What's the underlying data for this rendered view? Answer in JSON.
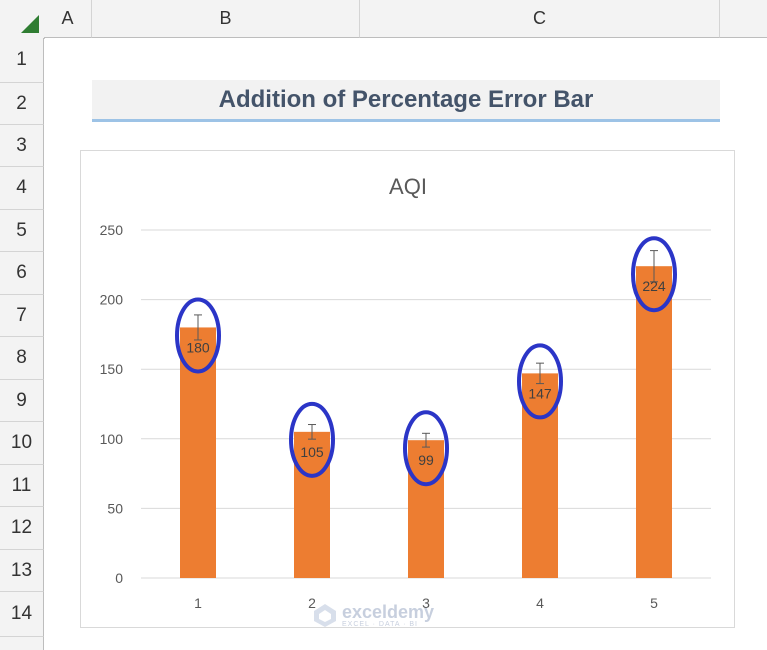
{
  "sheet": {
    "columns": [
      "A",
      "B",
      "C"
    ],
    "rows": [
      "1",
      "2",
      "3",
      "4",
      "5",
      "6",
      "7",
      "8",
      "9",
      "10",
      "11",
      "12",
      "13",
      "14"
    ]
  },
  "banner": {
    "title": "Addition of Percentage Error Bar"
  },
  "chart_data": {
    "type": "bar",
    "title": "AQI",
    "xlabel": "",
    "ylabel": "",
    "categories": [
      "1",
      "2",
      "3",
      "4",
      "5"
    ],
    "values": [
      180,
      105,
      99,
      147,
      224
    ],
    "data_labels": [
      "180",
      "105",
      "99",
      "147",
      "224"
    ],
    "error_bars": {
      "type": "percentage",
      "percent": 5
    },
    "highlight_circles": true,
    "ylim": [
      0,
      250
    ],
    "yticks": [
      0,
      50,
      100,
      150,
      200,
      250
    ],
    "grid": true,
    "legend": "none",
    "colors": {
      "bar": "#ed7d31",
      "circle": "#2b35c7",
      "error": "#595959",
      "grid": "#d9d9d9"
    }
  },
  "watermark": {
    "name": "exceldemy",
    "sub": "EXCEL · DATA · BI"
  }
}
